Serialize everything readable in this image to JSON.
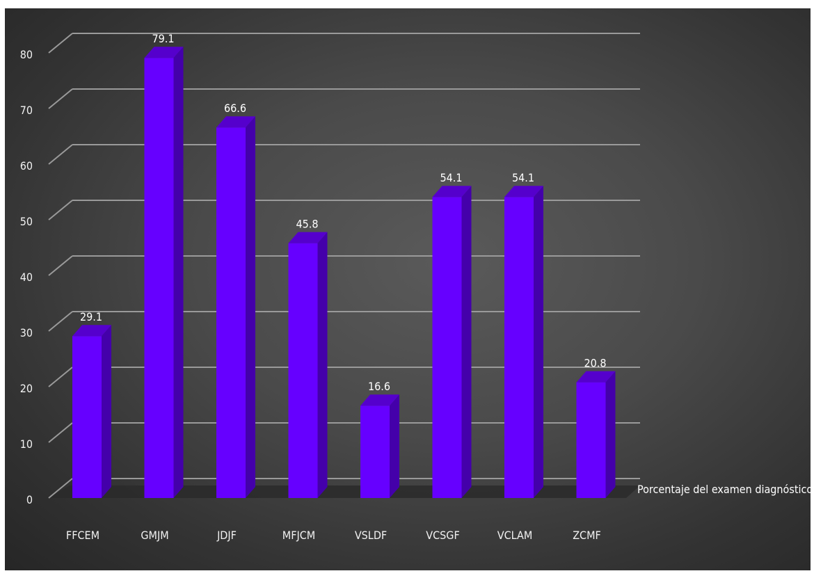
{
  "chart_data": {
    "type": "bar",
    "categories": [
      "FFCEM",
      "GMJM",
      "JDJF",
      "MFJCM",
      "VSLDF",
      "VCSGF",
      "VCLAM",
      "ZCMF"
    ],
    "series": [
      {
        "name": "Porcentaje del examen diagnóstico",
        "values": [
          29.1,
          79.1,
          66.6,
          45.8,
          16.6,
          54.1,
          54.1,
          20.8
        ]
      }
    ],
    "data_labels": [
      "29.1",
      "79.1",
      "66.6",
      "45.8",
      "16.6",
      "54.1",
      "54.1",
      "20.8"
    ],
    "y_ticks": [
      "0",
      "10",
      "20",
      "30",
      "40",
      "50",
      "60",
      "70",
      "80"
    ],
    "ylim": [
      0,
      90
    ],
    "grid": true,
    "legend_position": "right",
    "bar_style": "3d-column",
    "colors": {
      "bar_front": "#6600ff",
      "bar_side": "#4400aa",
      "bar_top": "#5500cc",
      "background": "#444444",
      "grid": "#9a9a9a",
      "text": "#ffffff"
    }
  }
}
